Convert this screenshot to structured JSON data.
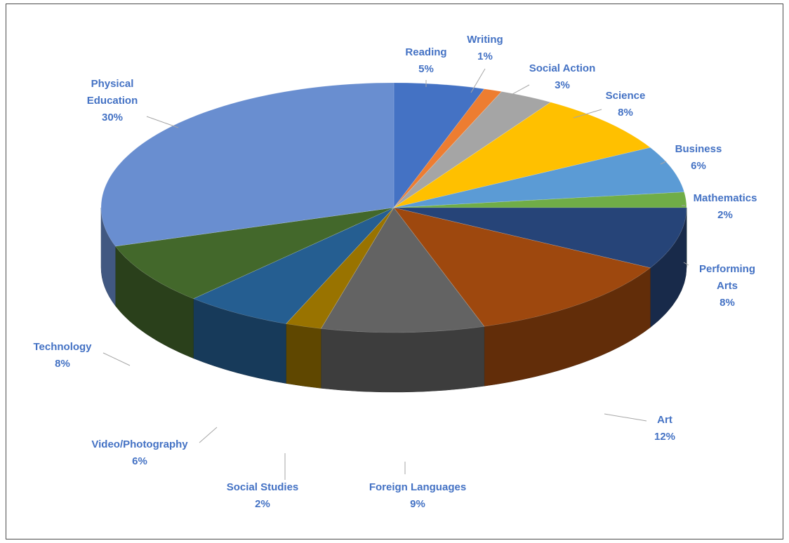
{
  "chart_data": {
    "type": "pie",
    "title": "",
    "series": [
      {
        "values": [
          {
            "label": "Reading",
            "value": 5,
            "display": "5%",
            "color": "#4472c4"
          },
          {
            "label": "Writing",
            "value": 1,
            "display": "1%",
            "color": "#ed7d31"
          },
          {
            "label": "Social Action",
            "value": 3,
            "display": "3%",
            "color": "#a5a5a5"
          },
          {
            "label": "Science",
            "value": 8,
            "display": "8%",
            "color": "#ffc000"
          },
          {
            "label": "Business",
            "value": 6,
            "display": "6%",
            "color": "#5b9bd5"
          },
          {
            "label": "Mathematics",
            "value": 2,
            "display": "2%",
            "color": "#70ad47"
          },
          {
            "label": "Performing Arts",
            "value": 8,
            "display": "8%",
            "color": "#264478"
          },
          {
            "label": "Art",
            "value": 12,
            "display": "12%",
            "color": "#9e480e"
          },
          {
            "label": "Foreign Languages",
            "value": 9,
            "display": "9%",
            "color": "#636363"
          },
          {
            "label": "Social Studies",
            "value": 2,
            "display": "2%",
            "color": "#997300"
          },
          {
            "label": "Video/Photography",
            "value": 6,
            "display": "6%",
            "color": "#255e91"
          },
          {
            "label": "Technology",
            "value": 8,
            "display": "8%",
            "color": "#43682b"
          },
          {
            "label": "Physical Education",
            "value": 30,
            "display": "30%",
            "color": "#698ed0"
          }
        ]
      }
    ],
    "style": "3d-pie",
    "legend": "none",
    "data_labels": "outside-with-leader-lines"
  }
}
